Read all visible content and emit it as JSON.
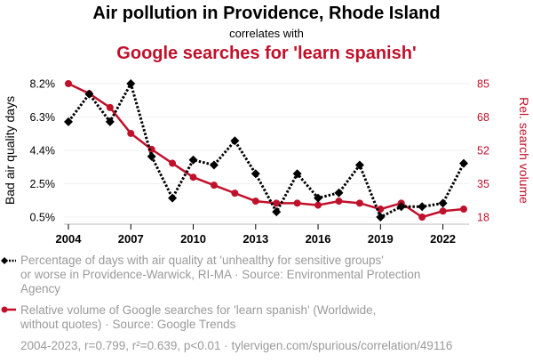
{
  "chart_data": {
    "type": "line",
    "title": "Air pollution in Providence, Rhode Island",
    "subtitle": "correlates with",
    "title2": "Google searches for 'learn spanish'",
    "x": [
      2004,
      2005,
      2006,
      2007,
      2008,
      2009,
      2010,
      2011,
      2012,
      2013,
      2014,
      2015,
      2016,
      2017,
      2018,
      2019,
      2020,
      2021,
      2022,
      2023
    ],
    "x_ticks": [
      "2004",
      "2007",
      "2010",
      "2013",
      "2016",
      "2019",
      "2022"
    ],
    "xlim": [
      2004,
      2023
    ],
    "ylabel_left": "Bad air quality days",
    "ylabel_right": "Rel. search volume",
    "y_left_ticks": [
      "8.2%",
      "6.3%",
      "4.4%",
      "2.5%",
      "0.5%"
    ],
    "y_left_range": [
      0.5,
      8.2
    ],
    "y_right_ticks": [
      "85",
      "68",
      "52",
      "35",
      "18"
    ],
    "y_right_range": [
      18,
      85
    ],
    "grid": true,
    "series": [
      {
        "name": "Percentage of days with air quality at 'unhealthy for sensitive groups'",
        "axis": "left",
        "color": "#000000",
        "values": [
          6.0,
          7.6,
          6.0,
          8.2,
          4.0,
          1.6,
          3.8,
          3.5,
          4.9,
          3.0,
          0.8,
          3.0,
          1.6,
          1.9,
          3.5,
          0.5,
          1.1,
          1.1,
          1.3,
          3.6
        ]
      },
      {
        "name": "Relative volume of Google searches for 'learn spanish'",
        "axis": "right",
        "color": "#c0112b",
        "values": [
          85,
          80,
          73,
          60,
          52,
          45,
          38,
          34,
          30,
          26,
          25,
          25,
          24,
          26,
          25,
          22,
          25,
          18,
          21,
          22
        ]
      }
    ],
    "legend": [
      [
        "Percentage of days with air quality at 'unhealthy for sensitive groups'",
        "or worse in Providence-Warwick, RI-MA · Source: Environmental Protection",
        "Agency"
      ],
      [
        "Relative volume of Google searches for 'learn spanish' (Worldwide,",
        "without quotes) · Source: Google Trends"
      ]
    ],
    "footer": "2004-2023, r=0.799, r²=0.639, p<0.01 · tylervigen.com/spurious/correlation/49116"
  }
}
